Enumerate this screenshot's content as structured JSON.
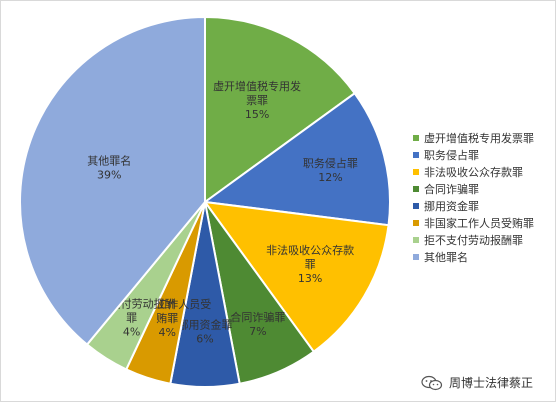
{
  "chart_data": {
    "type": "pie",
    "title": "",
    "legend_position": "right",
    "series": [
      {
        "name": "虚开增值税专用发票罪",
        "value": 15,
        "label_lines": [
          "虚开增值税专用发",
          "票罪",
          "15%"
        ],
        "color": "#70ad47"
      },
      {
        "name": "职务侵占罪",
        "value": 12,
        "label_lines": [
          "职务侵占罪",
          "12%"
        ],
        "color": "#4472c4"
      },
      {
        "name": "非法吸收公众存款罪",
        "value": 13,
        "label_lines": [
          "非法吸收公众存款",
          "罪",
          "13%"
        ],
        "color": "#ffc000"
      },
      {
        "name": "合同诈骗罪",
        "value": 7,
        "label_lines": [
          "合同诈骗罪",
          "7%"
        ],
        "color": "#4e8a33"
      },
      {
        "name": "挪用资金罪",
        "value": 6,
        "label_lines": [
          "挪用资金罪",
          "6%"
        ],
        "color": "#2e5aa8"
      },
      {
        "name": "非国家工作人员受贿罪",
        "value": 4,
        "label_lines": [
          "非国家工作人员受",
          "贿罪",
          "4%"
        ],
        "color": "#d99a00"
      },
      {
        "name": "拒不支付劳动报酬罪",
        "value": 4,
        "label_lines": [
          "拒不支付劳动报酬",
          "罪",
          "4%"
        ],
        "color": "#a9d18e"
      },
      {
        "name": "其他罪名",
        "value": 39,
        "label_lines": [
          "其他罪名",
          "39%"
        ],
        "color": "#8faadc"
      }
    ]
  },
  "legend": {
    "items": [
      "虚开增值税专用发票罪",
      "职务侵占罪",
      "非法吸收公众存款罪",
      "合同诈骗罪",
      "挪用资金罪",
      "非国家工作人员受贿罪",
      "拒不支付劳动报酬罪",
      "其他罪名"
    ]
  },
  "watermark": {
    "text": "周博士法律蔡正",
    "icon": "wechat-icon"
  }
}
